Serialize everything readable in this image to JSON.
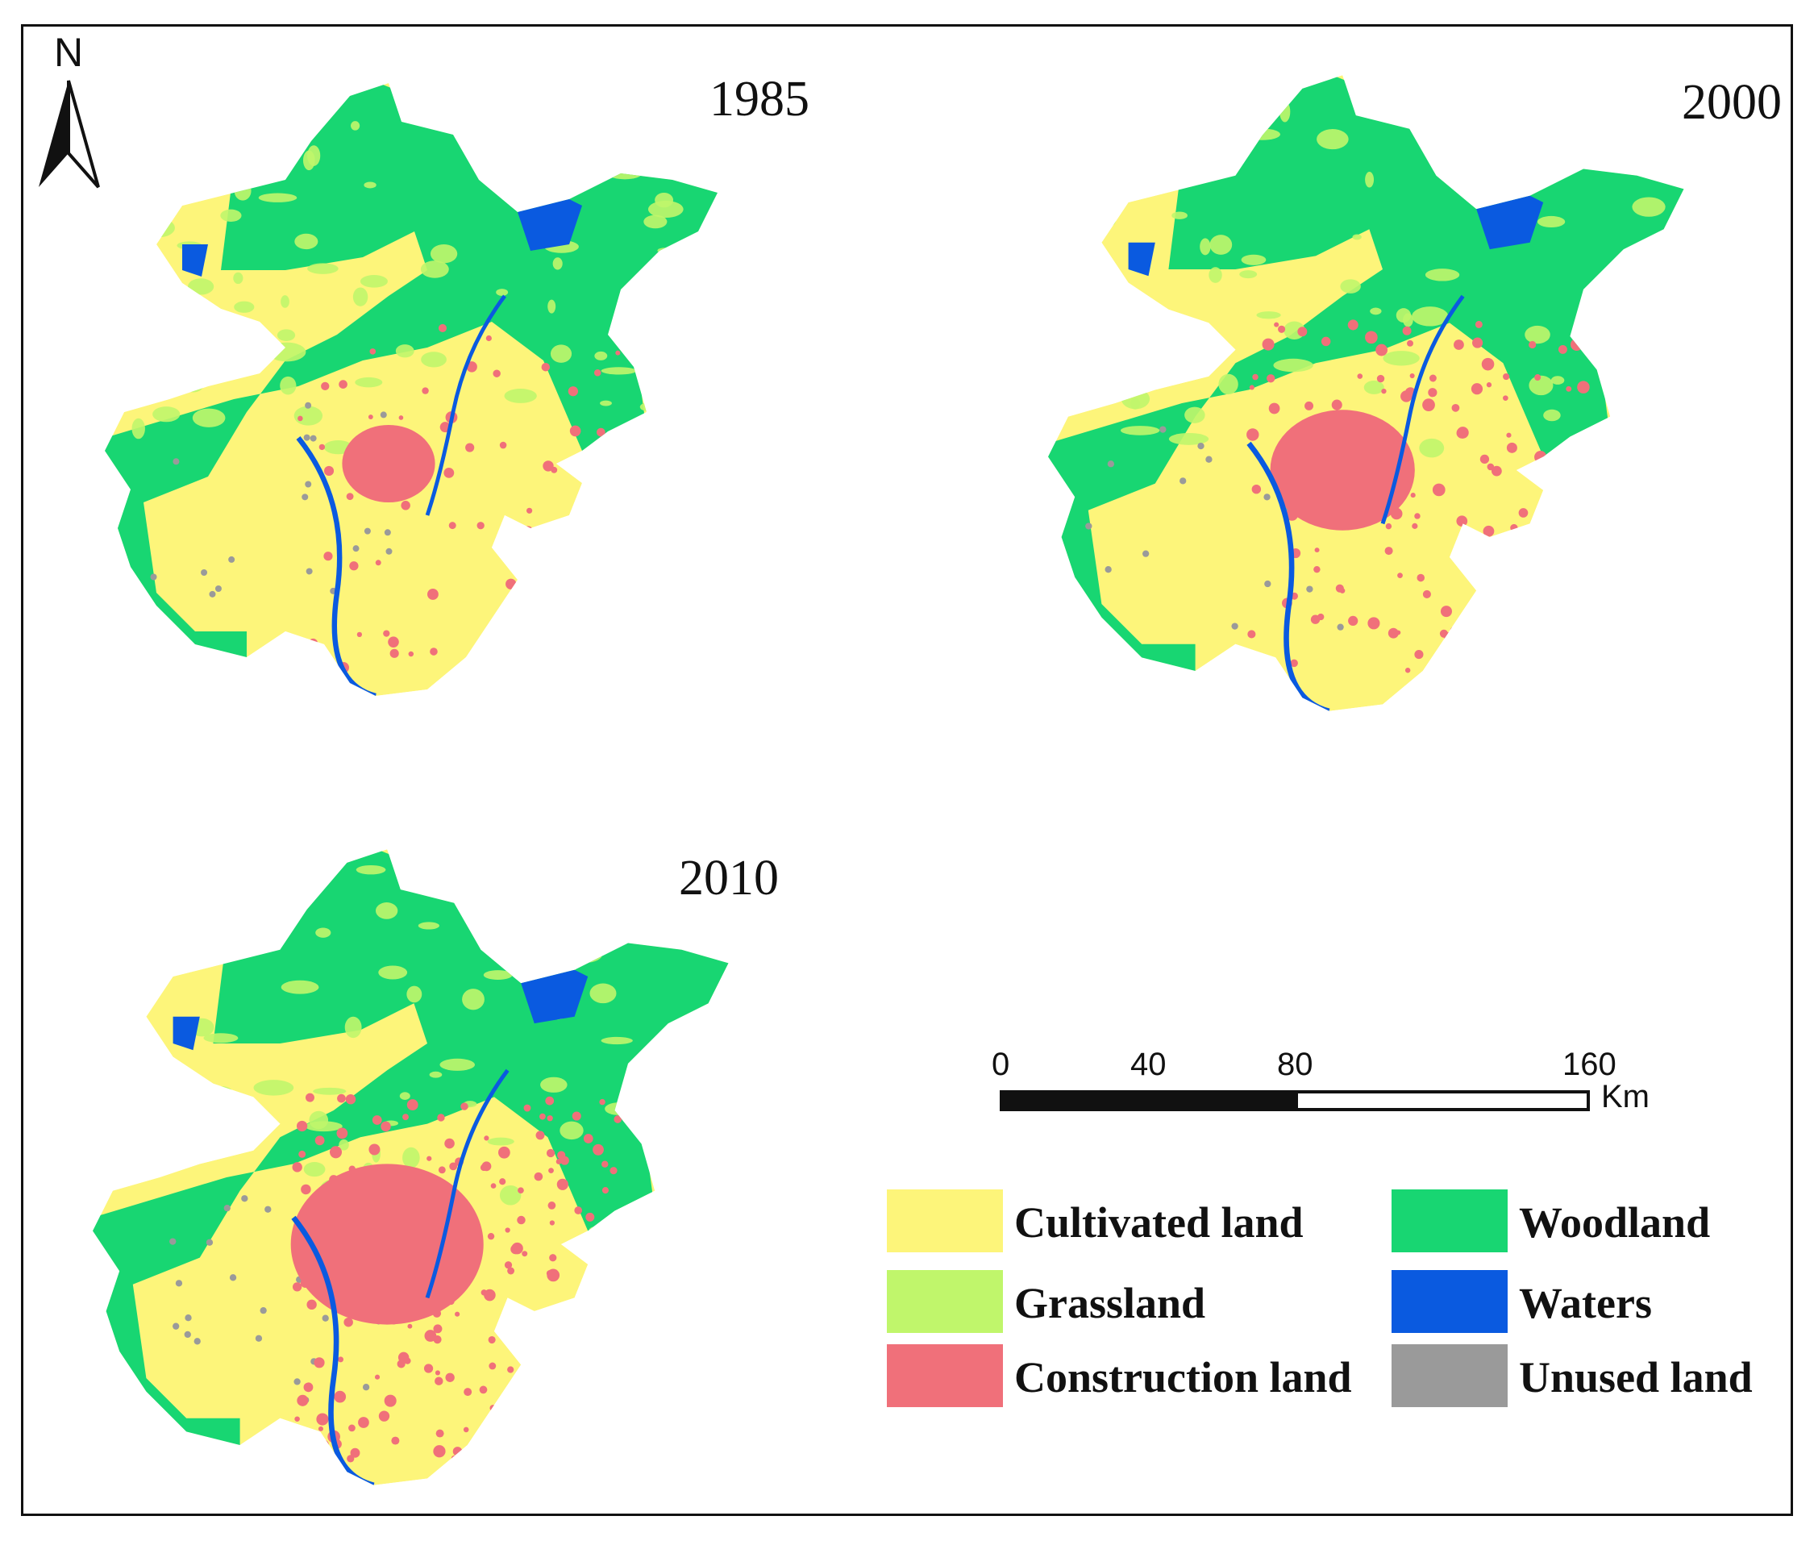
{
  "panels": [
    {
      "year": "1985",
      "construction_level": 1
    },
    {
      "year": "2000",
      "construction_level": 2
    },
    {
      "year": "2010",
      "construction_level": 3
    }
  ],
  "north_arrow": {
    "label": "N"
  },
  "scale_bar": {
    "ticks": [
      "0",
      "40",
      "80",
      "160"
    ],
    "unit": "Km"
  },
  "legend": [
    {
      "label": "Cultivated land",
      "color": "#fdf57a"
    },
    {
      "label": "Woodland",
      "color": "#18d672"
    },
    {
      "label": "Grassland",
      "color": "#c0f66b"
    },
    {
      "label": "Waters",
      "color": "#0a5ae0"
    },
    {
      "label": "Construction land",
      "color": "#f0707a"
    },
    {
      "label": "Unused land",
      "color": "#9a9a9a"
    }
  ]
}
